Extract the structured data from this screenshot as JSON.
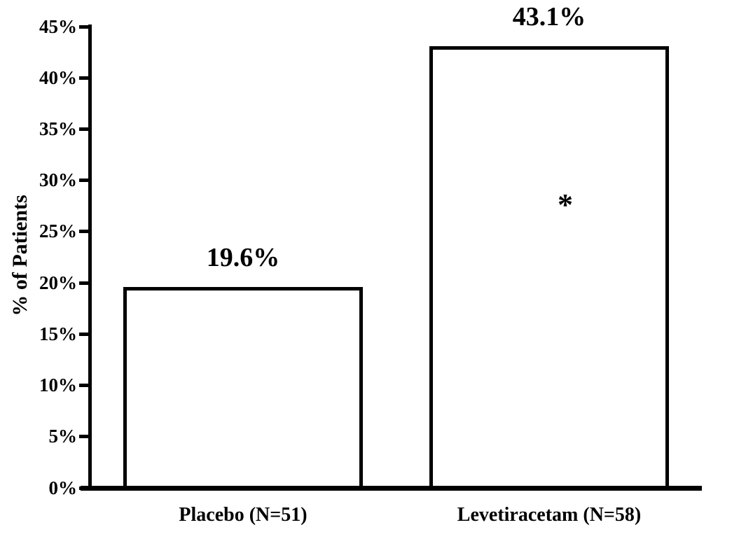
{
  "chart_data": {
    "type": "bar",
    "title": "",
    "categories": [
      "Placebo (N=51)",
      "Levetiracetam (N=58)"
    ],
    "values": [
      19.6,
      43.1
    ],
    "data_labels": [
      "19.6%",
      "43.1%"
    ],
    "xlabel": "",
    "ylabel": "% of Patients",
    "ylim": [
      0,
      45
    ],
    "ytick_step": 5,
    "ytick_labels": [
      "0%",
      "5%",
      "10%",
      "15%",
      "20%",
      "25%",
      "30%",
      "35%",
      "40%",
      "45%"
    ],
    "grid": false,
    "legend": "none",
    "bar_fill": "#ffffff",
    "bar_border": "#000000",
    "annotations": [
      {
        "text": "*",
        "bar_index": 1,
        "y_value_pct": 28
      }
    ]
  },
  "colors": {
    "background": "#ffffff",
    "ink": "#000000"
  }
}
